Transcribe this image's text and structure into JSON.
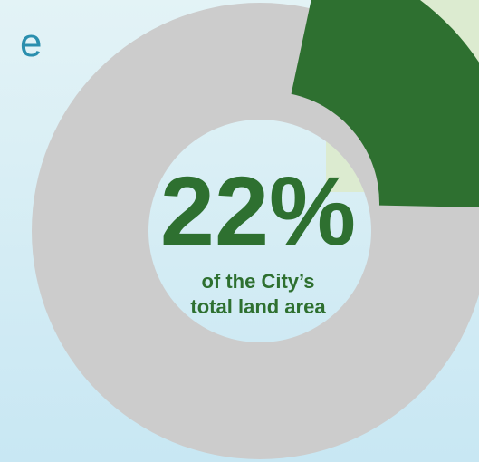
{
  "chart_data": {
    "type": "donut",
    "heading_fragment": "e",
    "values": [
      22
    ],
    "value_labels": [
      "22%"
    ],
    "color": "#2e7030",
    "track_color": "#cccccc",
    "caption": [
      "of the City’s",
      "total land area"
    ]
  }
}
